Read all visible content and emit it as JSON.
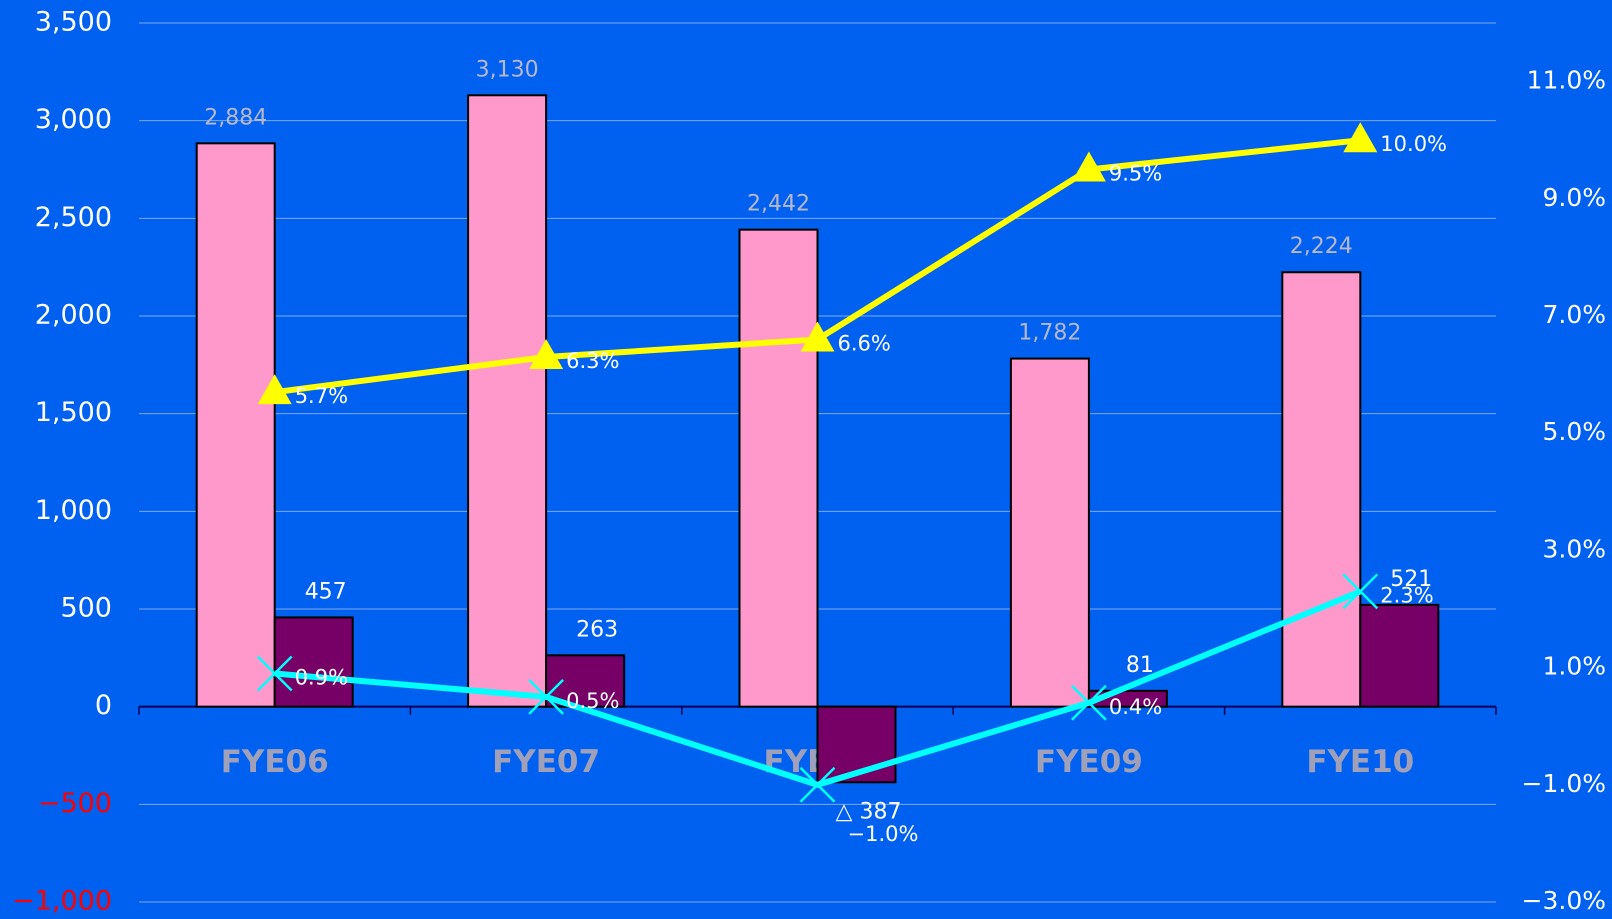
{
  "chart_data": {
    "type": "bar_line",
    "categories": [
      "FYE06",
      "FYE07",
      "FYE08",
      "FYE09",
      "FYE10"
    ],
    "ylim": [
      -1000,
      3500
    ],
    "yticks": [
      {
        "value": -1000,
        "label": "−1,000"
      },
      {
        "value": -500,
        "label": "−500"
      },
      0,
      500,
      {
        "value": 1000,
        "label": "1,000"
      },
      {
        "value": 1500,
        "label": "1,500"
      },
      {
        "value": 2000,
        "label": "2,000"
      },
      {
        "value": 2500,
        "label": "2,500"
      },
      {
        "value": 3000,
        "label": "3,000"
      },
      {
        "value": 3500,
        "label": "3,500"
      }
    ],
    "y2lim": [
      -3,
      12
    ],
    "y2ticks": [
      {
        "value": -3,
        "label": "−3.0%"
      },
      {
        "value": -1,
        "label": "−1.0%"
      },
      {
        "value": 1,
        "label": "1.0%"
      },
      {
        "value": 3,
        "label": "3.0%"
      },
      {
        "value": 5,
        "label": "5.0%"
      },
      {
        "value": 7,
        "label": "7.0%"
      },
      {
        "value": 9,
        "label": "9.0%"
      },
      {
        "value": 11,
        "label": "11.0%"
      }
    ],
    "grid": true,
    "negative_tick_color": "#ff0000",
    "series": [
      {
        "type": "bar",
        "color": "#ff99cc",
        "values": [
          2884,
          3130,
          2442,
          1782,
          2224
        ],
        "value_labels": [
          "2,884",
          "3,130",
          "2,442",
          "1,782",
          "2,224"
        ]
      },
      {
        "type": "bar",
        "color": "#770066",
        "values": [
          457,
          263,
          -387,
          81,
          521
        ],
        "value_labels": [
          "457",
          "263",
          "△ 387",
          "81",
          "521"
        ]
      },
      {
        "type": "line",
        "axis": "y2",
        "marker": "triangle",
        "color": "#ffff00",
        "values": [
          5.7,
          6.3,
          6.6,
          9.5,
          10.0
        ],
        "value_labels": [
          "5.7%",
          "6.3%",
          "6.6%",
          "9.5%",
          "10.0%"
        ]
      },
      {
        "type": "line",
        "axis": "y2",
        "marker": "x",
        "color": "#00ffff",
        "values": [
          0.9,
          0.5,
          -1.0,
          0.4,
          2.3
        ],
        "value_labels": [
          "0.9%",
          "0.5%",
          "−1.0%",
          "0.4%",
          "2.3%"
        ]
      }
    ]
  }
}
